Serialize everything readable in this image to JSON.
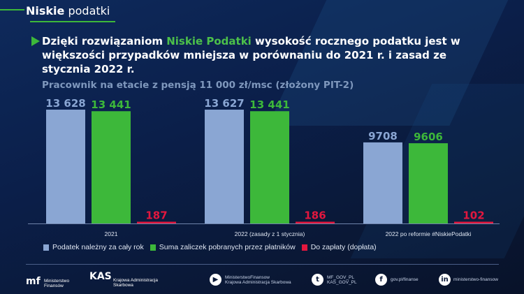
{
  "brand": {
    "bold": "Niskie",
    "light": "podatki"
  },
  "headline": {
    "part1": "Dzięki rozwiązaniom ",
    "highlight": "Niskie Podatki",
    "part2": " wysokość rocznego podatku jest w większości przypadków mniejsza w porównaniu do 2021 r. i zasad ze stycznia 2022 r."
  },
  "chart_data": {
    "type": "bar",
    "subtitle": "Pracownik na etacie z pensją 11 000 zł/msc (złożony PIT-2)",
    "categories": [
      "2021",
      "2022 (zasady z 1 stycznia)",
      "2022 po reformie #NiskiePodatki"
    ],
    "series": [
      {
        "name": "Podatek należny za cały rok",
        "values": [
          13628,
          13627,
          9708
        ],
        "labels": [
          "13 628",
          "13 627",
          "9708"
        ],
        "color": "#8aa6d3"
      },
      {
        "name": "Suma zaliczek pobranych przez płatników",
        "values": [
          13441,
          13441,
          9606
        ],
        "labels": [
          "13 441",
          "13 441",
          "9606"
        ],
        "color": "#3db83a"
      },
      {
        "name": "Do zapłaty (dopłata)",
        "values": [
          187,
          186,
          102
        ],
        "labels": [
          "187",
          "186",
          "102"
        ],
        "color": "#e3173e"
      }
    ],
    "ylim": [
      0,
      13628
    ],
    "grid": false,
    "legend": "bottom-left"
  },
  "footer": {
    "mf": [
      "Ministerstwo",
      "Finansów"
    ],
    "kas": [
      "Krajowa Administracja",
      "Skarbowa"
    ],
    "youtube": [
      "MinisterstwoFinansow",
      "Krajowa Administracja Skarbowa"
    ],
    "twitter": [
      "MF_GOV_PL",
      "KAS_GOV_PL"
    ],
    "facebook": "gov.pl/finanse",
    "linkedin": "ministerstwo-finansow"
  }
}
